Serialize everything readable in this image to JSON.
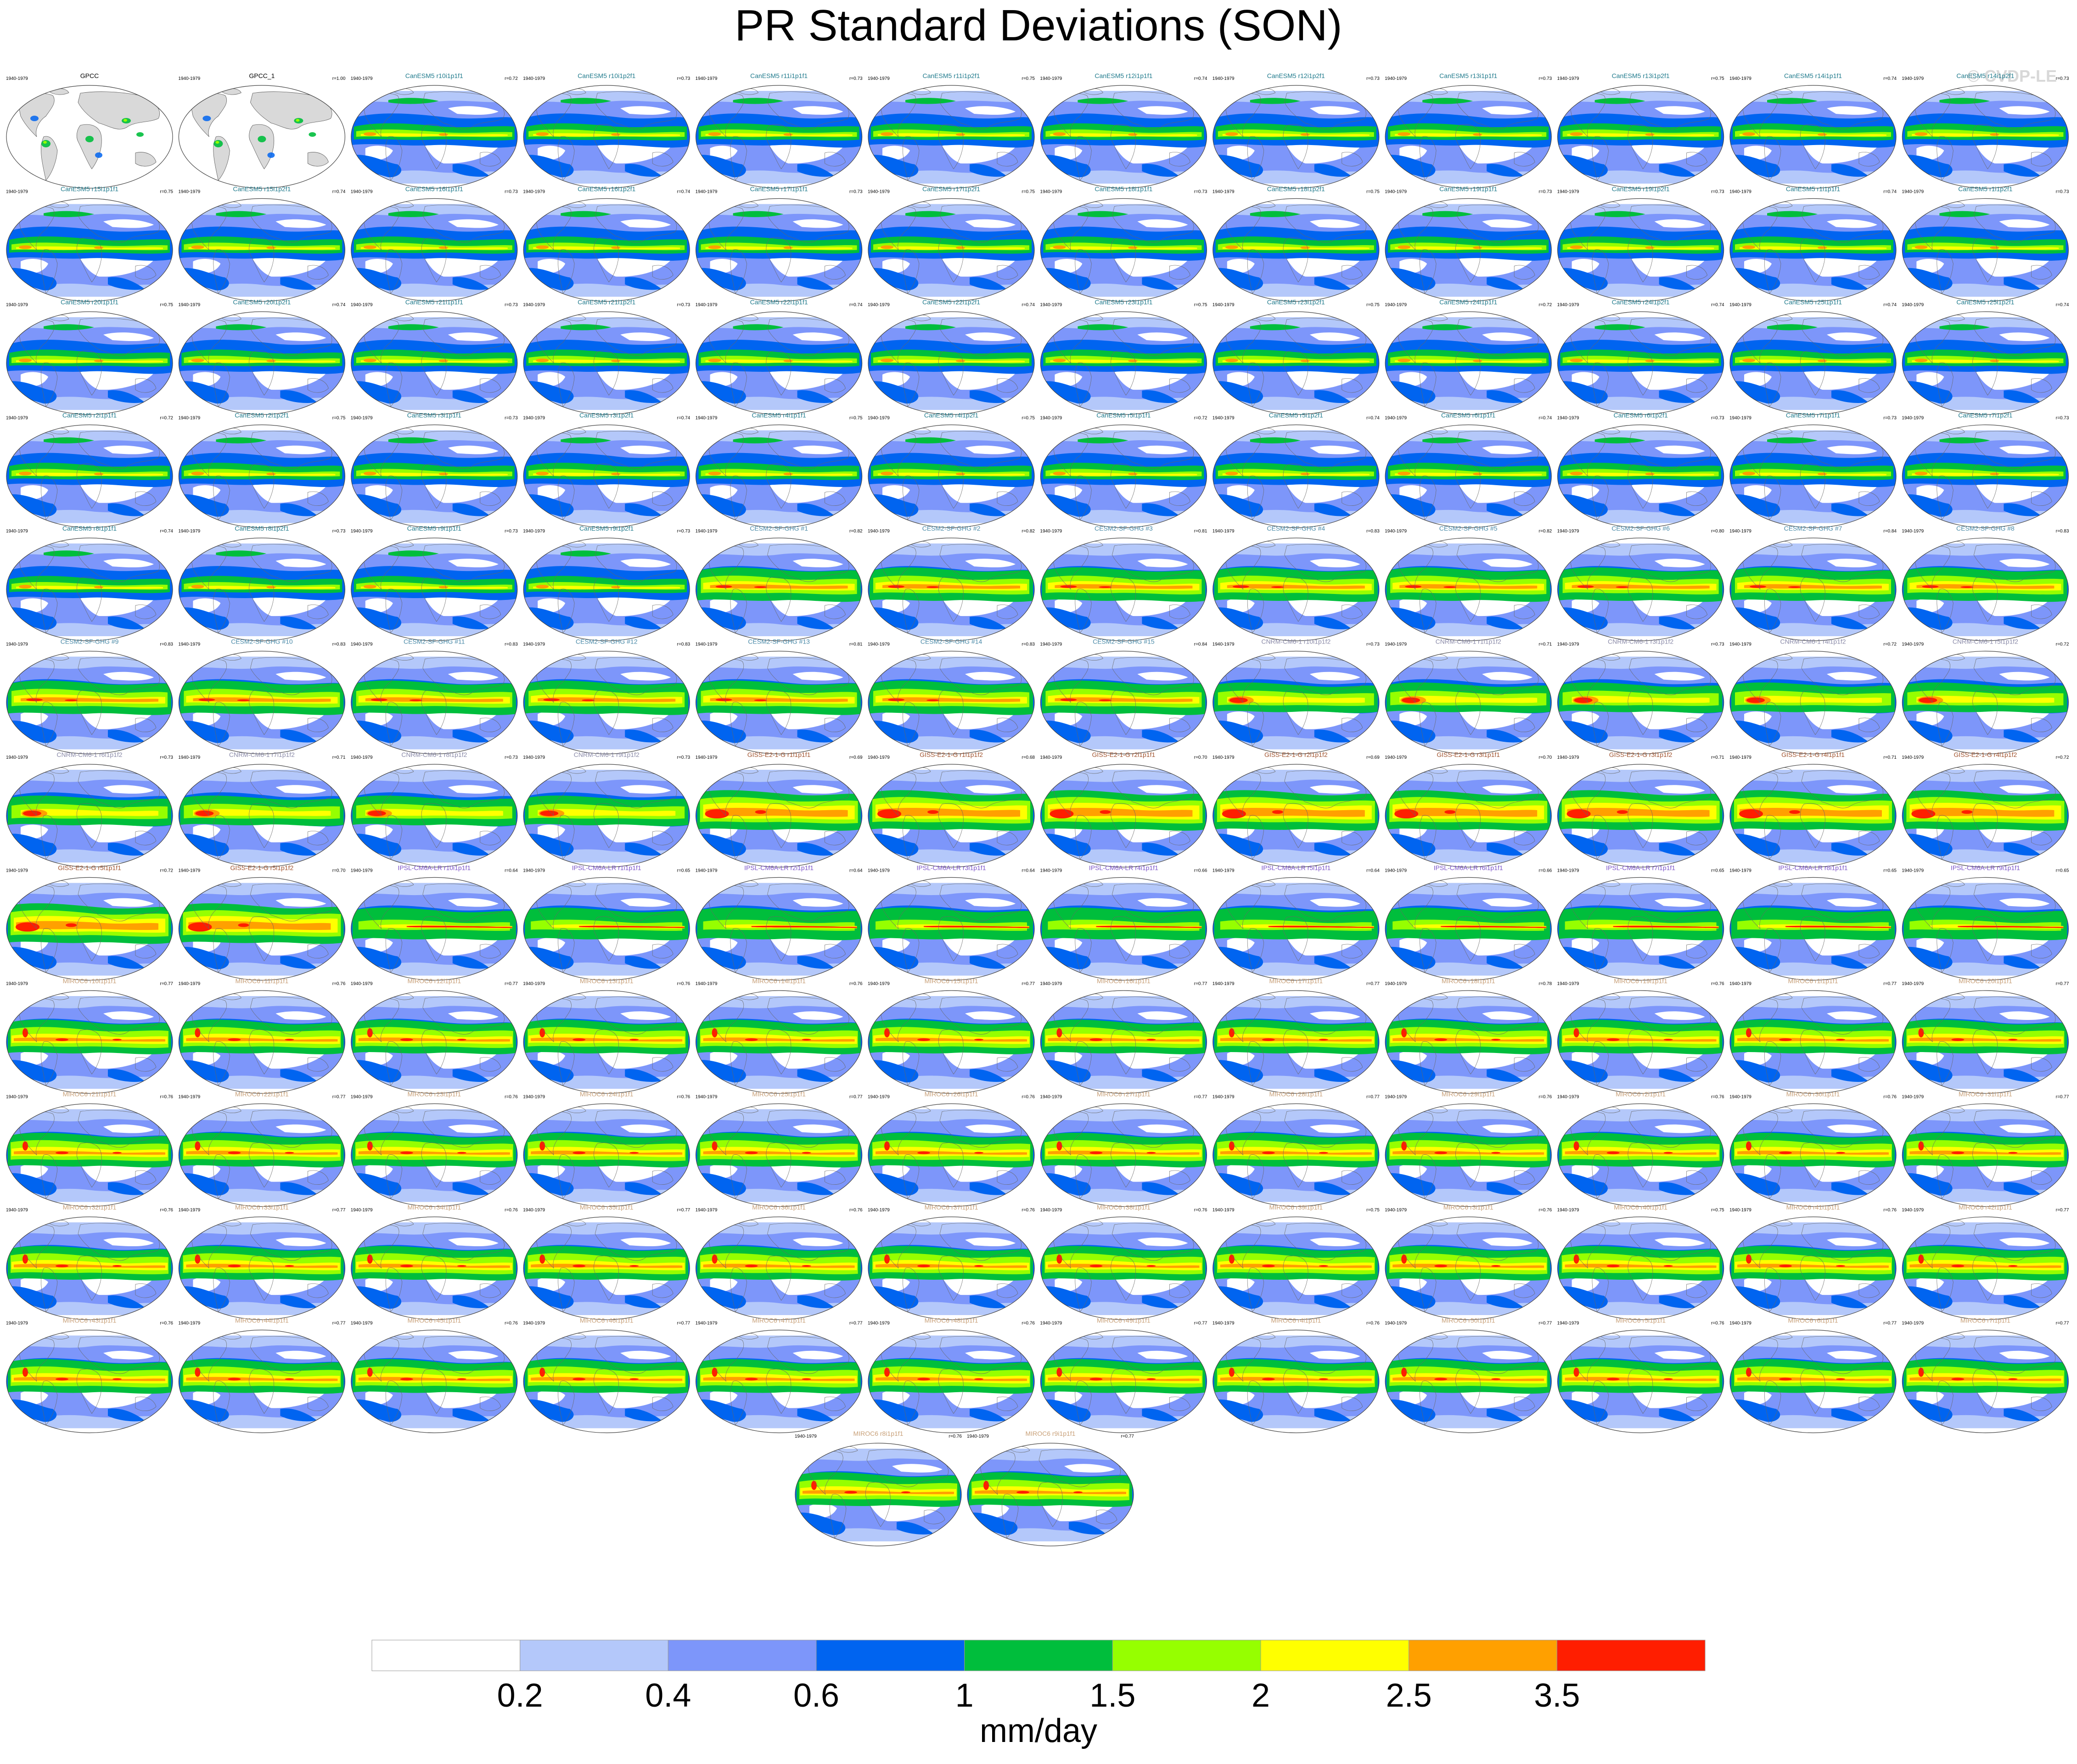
{
  "title": "PR Standard Deviations (SON)",
  "watermark": "© CVDP-LE",
  "colorbar": {
    "colors": [
      "#ffffff",
      "#b4c8fa",
      "#7d96fa",
      "#0064f0",
      "#00be3c",
      "#96ff00",
      "#ffff00",
      "#ffa000",
      "#ff1e00"
    ],
    "tick_labels": [
      "0.2",
      "0.4",
      "0.6",
      "1",
      "1.5",
      "2",
      "2.5",
      "3.5"
    ],
    "units": "mm/day"
  },
  "panel_period": "1940-1979",
  "chart_data": {
    "type": "heatmap",
    "panel_grid": {
      "rows": 13,
      "cols": 12
    },
    "panels": [
      {
        "name": "GPCC",
        "r": "",
        "color": "#000000",
        "kind": "obs"
      },
      {
        "name": "GPCC_1",
        "r": "r=1.00",
        "color": "#000000",
        "kind": "obs"
      },
      {
        "name": "CanESM5 r10i1p1f1",
        "r": "r=0.72",
        "color": "#1f7a8c",
        "kind": "can"
      },
      {
        "name": "CanESM5 r10i1p2f1",
        "r": "r=0.73",
        "color": "#1f7a8c",
        "kind": "can"
      },
      {
        "name": "CanESM5 r11i1p1f1",
        "r": "r=0.73",
        "color": "#1f7a8c",
        "kind": "can"
      },
      {
        "name": "CanESM5 r11i1p2f1",
        "r": "r=0.75",
        "color": "#1f7a8c",
        "kind": "can"
      },
      {
        "name": "CanESM5 r12i1p1f1",
        "r": "r=0.74",
        "color": "#1f7a8c",
        "kind": "can"
      },
      {
        "name": "CanESM5 r12i1p2f1",
        "r": "r=0.73",
        "color": "#1f7a8c",
        "kind": "can"
      },
      {
        "name": "CanESM5 r13i1p1f1",
        "r": "r=0.73",
        "color": "#1f7a8c",
        "kind": "can"
      },
      {
        "name": "CanESM5 r13i1p2f1",
        "r": "r=0.75",
        "color": "#1f7a8c",
        "kind": "can"
      },
      {
        "name": "CanESM5 r14i1p1f1",
        "r": "r=0.74",
        "color": "#1f7a8c",
        "kind": "can"
      },
      {
        "name": "CanESM5 r14i1p2f1",
        "r": "r=0.73",
        "color": "#1f7a8c",
        "kind": "can"
      },
      {
        "name": "CanESM5 r15i1p1f1",
        "r": "r=0.75",
        "color": "#1f7a8c",
        "kind": "can"
      },
      {
        "name": "CanESM5 r15i1p2f1",
        "r": "r=0.74",
        "color": "#1f7a8c",
        "kind": "can"
      },
      {
        "name": "CanESM5 r16i1p1f1",
        "r": "r=0.73",
        "color": "#1f7a8c",
        "kind": "can"
      },
      {
        "name": "CanESM5 r16i1p2f1",
        "r": "r=0.74",
        "color": "#1f7a8c",
        "kind": "can"
      },
      {
        "name": "CanESM5 r17i1p1f1",
        "r": "r=0.73",
        "color": "#1f7a8c",
        "kind": "can"
      },
      {
        "name": "CanESM5 r17i1p2f1",
        "r": "r=0.75",
        "color": "#1f7a8c",
        "kind": "can"
      },
      {
        "name": "CanESM5 r18i1p1f1",
        "r": "r=0.73",
        "color": "#1f7a8c",
        "kind": "can"
      },
      {
        "name": "CanESM5 r18i1p2f1",
        "r": "r=0.75",
        "color": "#1f7a8c",
        "kind": "can"
      },
      {
        "name": "CanESM5 r19i1p1f1",
        "r": "r=0.73",
        "color": "#1f7a8c",
        "kind": "can"
      },
      {
        "name": "CanESM5 r19i1p2f1",
        "r": "r=0.73",
        "color": "#1f7a8c",
        "kind": "can"
      },
      {
        "name": "CanESM5 r1i1p1f1",
        "r": "r=0.74",
        "color": "#1f7a8c",
        "kind": "can"
      },
      {
        "name": "CanESM5 r1i1p2f1",
        "r": "r=0.73",
        "color": "#1f7a8c",
        "kind": "can"
      },
      {
        "name": "CanESM5 r20i1p1f1",
        "r": "r=0.75",
        "color": "#1f7a8c",
        "kind": "can"
      },
      {
        "name": "CanESM5 r20i1p2f1",
        "r": "r=0.74",
        "color": "#1f7a8c",
        "kind": "can"
      },
      {
        "name": "CanESM5 r21i1p1f1",
        "r": "r=0.73",
        "color": "#1f7a8c",
        "kind": "can"
      },
      {
        "name": "CanESM5 r21i1p2f1",
        "r": "r=0.73",
        "color": "#1f7a8c",
        "kind": "can"
      },
      {
        "name": "CanESM5 r22i1p1f1",
        "r": "r=0.74",
        "color": "#1f7a8c",
        "kind": "can"
      },
      {
        "name": "CanESM5 r22i1p2f1",
        "r": "r=0.74",
        "color": "#1f7a8c",
        "kind": "can"
      },
      {
        "name": "CanESM5 r23i1p1f1",
        "r": "r=0.75",
        "color": "#1f7a8c",
        "kind": "can"
      },
      {
        "name": "CanESM5 r23i1p2f1",
        "r": "r=0.75",
        "color": "#1f7a8c",
        "kind": "can"
      },
      {
        "name": "CanESM5 r24i1p1f1",
        "r": "r=0.72",
        "color": "#1f7a8c",
        "kind": "can"
      },
      {
        "name": "CanESM5 r24i1p2f1",
        "r": "r=0.74",
        "color": "#1f7a8c",
        "kind": "can"
      },
      {
        "name": "CanESM5 r25i1p1f1",
        "r": "r=0.74",
        "color": "#1f7a8c",
        "kind": "can"
      },
      {
        "name": "CanESM5 r25i1p2f1",
        "r": "r=0.74",
        "color": "#1f7a8c",
        "kind": "can"
      },
      {
        "name": "CanESM5 r2i1p1f1",
        "r": "r=0.72",
        "color": "#1f7a8c",
        "kind": "can"
      },
      {
        "name": "CanESM5 r2i1p2f1",
        "r": "r=0.75",
        "color": "#1f7a8c",
        "kind": "can"
      },
      {
        "name": "CanESM5 r3i1p1f1",
        "r": "r=0.73",
        "color": "#1f7a8c",
        "kind": "can"
      },
      {
        "name": "CanESM5 r3i1p2f1",
        "r": "r=0.74",
        "color": "#1f7a8c",
        "kind": "can"
      },
      {
        "name": "CanESM5 r4i1p1f1",
        "r": "r=0.75",
        "color": "#1f7a8c",
        "kind": "can"
      },
      {
        "name": "CanESM5 r4i1p2f1",
        "r": "r=0.75",
        "color": "#1f7a8c",
        "kind": "can"
      },
      {
        "name": "CanESM5 r5i1p1f1",
        "r": "r=0.72",
        "color": "#1f7a8c",
        "kind": "can"
      },
      {
        "name": "CanESM5 r5i1p2f1",
        "r": "r=0.74",
        "color": "#1f7a8c",
        "kind": "can"
      },
      {
        "name": "CanESM5 r6i1p1f1",
        "r": "r=0.74",
        "color": "#1f7a8c",
        "kind": "can"
      },
      {
        "name": "CanESM5 r6i1p2f1",
        "r": "r=0.73",
        "color": "#1f7a8c",
        "kind": "can"
      },
      {
        "name": "CanESM5 r7i1p1f1",
        "r": "r=0.73",
        "color": "#1f7a8c",
        "kind": "can"
      },
      {
        "name": "CanESM5 r7i1p2f1",
        "r": "r=0.73",
        "color": "#1f7a8c",
        "kind": "can"
      },
      {
        "name": "CanESM5 r8i1p1f1",
        "r": "r=0.74",
        "color": "#1f7a8c",
        "kind": "can"
      },
      {
        "name": "CanESM5 r8i1p2f1",
        "r": "r=0.73",
        "color": "#1f7a8c",
        "kind": "can"
      },
      {
        "name": "CanESM5 r9i1p1f1",
        "r": "r=0.73",
        "color": "#1f7a8c",
        "kind": "can"
      },
      {
        "name": "CanESM5 r9i1p2f1",
        "r": "r=0.73",
        "color": "#1f7a8c",
        "kind": "can"
      },
      {
        "name": "CESM2-SF-GHG #1",
        "r": "r=0.82",
        "color": "#4a8aa8",
        "kind": "cesm"
      },
      {
        "name": "CESM2-SF-GHG #2",
        "r": "r=0.82",
        "color": "#4a8aa8",
        "kind": "cesm"
      },
      {
        "name": "CESM2-SF-GHG #3",
        "r": "r=0.81",
        "color": "#4a8aa8",
        "kind": "cesm"
      },
      {
        "name": "CESM2-SF-GHG #4",
        "r": "r=0.83",
        "color": "#4a8aa8",
        "kind": "cesm"
      },
      {
        "name": "CESM2-SF-GHG #5",
        "r": "r=0.82",
        "color": "#4a8aa8",
        "kind": "cesm"
      },
      {
        "name": "CESM2-SF-GHG #6",
        "r": "r=0.80",
        "color": "#4a8aa8",
        "kind": "cesm"
      },
      {
        "name": "CESM2-SF-GHG #7",
        "r": "r=0.84",
        "color": "#4a8aa8",
        "kind": "cesm"
      },
      {
        "name": "CESM2-SF-GHG #8",
        "r": "r=0.83",
        "color": "#4a8aa8",
        "kind": "cesm"
      },
      {
        "name": "CESM2-SF-GHG #9",
        "r": "r=0.83",
        "color": "#4a8aa8",
        "kind": "cesm"
      },
      {
        "name": "CESM2-SF-GHG #10",
        "r": "r=0.83",
        "color": "#4a8aa8",
        "kind": "cesm"
      },
      {
        "name": "CESM2-SF-GHG #11",
        "r": "r=0.83",
        "color": "#4a8aa8",
        "kind": "cesm"
      },
      {
        "name": "CESM2-SF-GHG #12",
        "r": "r=0.83",
        "color": "#4a8aa8",
        "kind": "cesm"
      },
      {
        "name": "CESM2-SF-GHG #13",
        "r": "r=0.81",
        "color": "#4a8aa8",
        "kind": "cesm"
      },
      {
        "name": "CESM2-SF-GHG #14",
        "r": "r=0.83",
        "color": "#4a8aa8",
        "kind": "cesm"
      },
      {
        "name": "CESM2-SF-GHG #15",
        "r": "r=0.84",
        "color": "#4a8aa8",
        "kind": "cesm"
      },
      {
        "name": "CNRM-CM6-1 r10i1p1f2",
        "r": "r=0.73",
        "color": "#8a8aa8",
        "kind": "cnrm"
      },
      {
        "name": "CNRM-CM6-1 r1i1p1f2",
        "r": "r=0.71",
        "color": "#8a8aa8",
        "kind": "cnrm"
      },
      {
        "name": "CNRM-CM6-1 r3i1p1f2",
        "r": "r=0.73",
        "color": "#8a8aa8",
        "kind": "cnrm"
      },
      {
        "name": "CNRM-CM6-1 r4i1p1f2",
        "r": "r=0.72",
        "color": "#8a8aa8",
        "kind": "cnrm"
      },
      {
        "name": "CNRM-CM6-1 r5i1p1f2",
        "r": "r=0.72",
        "color": "#8a8aa8",
        "kind": "cnrm"
      },
      {
        "name": "CNRM-CM6-1 r6i1p1f2",
        "r": "r=0.73",
        "color": "#8a8aa8",
        "kind": "cnrm"
      },
      {
        "name": "CNRM-CM6-1 r7i1p1f2",
        "r": "r=0.71",
        "color": "#8a8aa8",
        "kind": "cnrm"
      },
      {
        "name": "CNRM-CM6-1 r8i1p1f2",
        "r": "r=0.73",
        "color": "#8a8aa8",
        "kind": "cnrm"
      },
      {
        "name": "CNRM-CM6-1 r9i1p1f2",
        "r": "r=0.73",
        "color": "#8a8aa8",
        "kind": "cnrm"
      },
      {
        "name": "GISS-E2-1-G r1i1p1f1",
        "r": "r=0.69",
        "color": "#a0522d",
        "kind": "giss"
      },
      {
        "name": "GISS-E2-1-G r1i1p1f2",
        "r": "r=0.68",
        "color": "#a0522d",
        "kind": "giss"
      },
      {
        "name": "GISS-E2-1-G r2i1p1f1",
        "r": "r=0.70",
        "color": "#a0522d",
        "kind": "giss"
      },
      {
        "name": "GISS-E2-1-G r2i1p1f2",
        "r": "r=0.69",
        "color": "#a0522d",
        "kind": "giss"
      },
      {
        "name": "GISS-E2-1-G r3i1p1f1",
        "r": "r=0.70",
        "color": "#a0522d",
        "kind": "giss"
      },
      {
        "name": "GISS-E2-1-G r3i1p1f2",
        "r": "r=0.71",
        "color": "#a0522d",
        "kind": "giss"
      },
      {
        "name": "GISS-E2-1-G r4i1p1f1",
        "r": "r=0.71",
        "color": "#a0522d",
        "kind": "giss"
      },
      {
        "name": "GISS-E2-1-G r4i1p1f2",
        "r": "r=0.72",
        "color": "#a0522d",
        "kind": "giss"
      },
      {
        "name": "GISS-E2-1-G r5i1p1f1",
        "r": "r=0.72",
        "color": "#a0522d",
        "kind": "giss"
      },
      {
        "name": "GISS-E2-1-G r5i1p1f2",
        "r": "r=0.70",
        "color": "#a0522d",
        "kind": "giss"
      },
      {
        "name": "IPSL-CM6A-LR r10i1p1f1",
        "r": "r=0.64",
        "color": "#7b52c8",
        "kind": "ipsl"
      },
      {
        "name": "IPSL-CM6A-LR r1i1p1f1",
        "r": "r=0.65",
        "color": "#7b52c8",
        "kind": "ipsl"
      },
      {
        "name": "IPSL-CM6A-LR r2i1p1f1",
        "r": "r=0.64",
        "color": "#7b52c8",
        "kind": "ipsl"
      },
      {
        "name": "IPSL-CM6A-LR r3i1p1f1",
        "r": "r=0.64",
        "color": "#7b52c8",
        "kind": "ipsl"
      },
      {
        "name": "IPSL-CM6A-LR r4i1p1f1",
        "r": "r=0.66",
        "color": "#7b52c8",
        "kind": "ipsl"
      },
      {
        "name": "IPSL-CM6A-LR r5i1p1f1",
        "r": "r=0.64",
        "color": "#7b52c8",
        "kind": "ipsl"
      },
      {
        "name": "IPSL-CM6A-LR r6i1p1f1",
        "r": "r=0.66",
        "color": "#7b52c8",
        "kind": "ipsl"
      },
      {
        "name": "IPSL-CM6A-LR r7i1p1f1",
        "r": "r=0.65",
        "color": "#7b52c8",
        "kind": "ipsl"
      },
      {
        "name": "IPSL-CM6A-LR r8i1p1f1",
        "r": "r=0.65",
        "color": "#7b52c8",
        "kind": "ipsl"
      },
      {
        "name": "IPSL-CM6A-LR r9i1p1f1",
        "r": "r=0.65",
        "color": "#7b52c8",
        "kind": "ipsl"
      },
      {
        "name": "MIROC6 r10i1p1f1",
        "r": "r=0.77",
        "color": "#c8a078",
        "kind": "miroc"
      },
      {
        "name": "MIROC6 r11i1p1f1",
        "r": "r=0.76",
        "color": "#c8a078",
        "kind": "miroc"
      },
      {
        "name": "MIROC6 r12i1p1f1",
        "r": "r=0.77",
        "color": "#c8a078",
        "kind": "miroc"
      },
      {
        "name": "MIROC6 r13i1p1f1",
        "r": "r=0.76",
        "color": "#c8a078",
        "kind": "miroc"
      },
      {
        "name": "MIROC6 r14i1p1f1",
        "r": "r=0.76",
        "color": "#c8a078",
        "kind": "miroc"
      },
      {
        "name": "MIROC6 r15i1p1f1",
        "r": "r=0.77",
        "color": "#c8a078",
        "kind": "miroc"
      },
      {
        "name": "MIROC6 r16i1p1f1",
        "r": "r=0.77",
        "color": "#c8a078",
        "kind": "miroc"
      },
      {
        "name": "MIROC6 r17i1p1f1",
        "r": "r=0.77",
        "color": "#c8a078",
        "kind": "miroc"
      },
      {
        "name": "MIROC6 r18i1p1f1",
        "r": "r=0.78",
        "color": "#c8a078",
        "kind": "miroc"
      },
      {
        "name": "MIROC6 r19i1p1f1",
        "r": "r=0.76",
        "color": "#c8a078",
        "kind": "miroc"
      },
      {
        "name": "MIROC6 r1i1p1f1",
        "r": "r=0.77",
        "color": "#c8a078",
        "kind": "miroc"
      },
      {
        "name": "MIROC6 r20i1p1f1",
        "r": "r=0.77",
        "color": "#c8a078",
        "kind": "miroc"
      },
      {
        "name": "MIROC6 r21i1p1f1",
        "r": "r=0.76",
        "color": "#c8a078",
        "kind": "miroc"
      },
      {
        "name": "MIROC6 r22i1p1f1",
        "r": "r=0.77",
        "color": "#c8a078",
        "kind": "miroc"
      },
      {
        "name": "MIROC6 r23i1p1f1",
        "r": "r=0.76",
        "color": "#c8a078",
        "kind": "miroc"
      },
      {
        "name": "MIROC6 r24i1p1f1",
        "r": "r=0.76",
        "color": "#c8a078",
        "kind": "miroc"
      },
      {
        "name": "MIROC6 r25i1p1f1",
        "r": "r=0.77",
        "color": "#c8a078",
        "kind": "miroc"
      },
      {
        "name": "MIROC6 r26i1p1f1",
        "r": "r=0.76",
        "color": "#c8a078",
        "kind": "miroc"
      },
      {
        "name": "MIROC6 r27i1p1f1",
        "r": "r=0.77",
        "color": "#c8a078",
        "kind": "miroc"
      },
      {
        "name": "MIROC6 r28i1p1f1",
        "r": "r=0.77",
        "color": "#c8a078",
        "kind": "miroc"
      },
      {
        "name": "MIROC6 r29i1p1f1",
        "r": "r=0.76",
        "color": "#c8a078",
        "kind": "miroc"
      },
      {
        "name": "MIROC6 r2i1p1f1",
        "r": "r=0.76",
        "color": "#c8a078",
        "kind": "miroc"
      },
      {
        "name": "MIROC6 r30i1p1f1",
        "r": "r=0.76",
        "color": "#c8a078",
        "kind": "miroc"
      },
      {
        "name": "MIROC6 r31i1p1f1",
        "r": "r=0.77",
        "color": "#c8a078",
        "kind": "miroc"
      },
      {
        "name": "MIROC6 r32i1p1f1",
        "r": "r=0.76",
        "color": "#c8a078",
        "kind": "miroc"
      },
      {
        "name": "MIROC6 r33i1p1f1",
        "r": "r=0.77",
        "color": "#c8a078",
        "kind": "miroc"
      },
      {
        "name": "MIROC6 r34i1p1f1",
        "r": "r=0.76",
        "color": "#c8a078",
        "kind": "miroc"
      },
      {
        "name": "MIROC6 r35i1p1f1",
        "r": "r=0.77",
        "color": "#c8a078",
        "kind": "miroc"
      },
      {
        "name": "MIROC6 r36i1p1f1",
        "r": "r=0.76",
        "color": "#c8a078",
        "kind": "miroc"
      },
      {
        "name": "MIROC6 r37i1p1f1",
        "r": "r=0.76",
        "color": "#c8a078",
        "kind": "miroc"
      },
      {
        "name": "MIROC6 r38i1p1f1",
        "r": "r=0.76",
        "color": "#c8a078",
        "kind": "miroc"
      },
      {
        "name": "MIROC6 r39i1p1f1",
        "r": "r=0.75",
        "color": "#c8a078",
        "kind": "miroc"
      },
      {
        "name": "MIROC6 r3i1p1f1",
        "r": "r=0.76",
        "color": "#c8a078",
        "kind": "miroc"
      },
      {
        "name": "MIROC6 r40i1p1f1",
        "r": "r=0.75",
        "color": "#c8a078",
        "kind": "miroc"
      },
      {
        "name": "MIROC6 r41i1p1f1",
        "r": "r=0.76",
        "color": "#c8a078",
        "kind": "miroc"
      },
      {
        "name": "MIROC6 r42i1p1f1",
        "r": "r=0.77",
        "color": "#c8a078",
        "kind": "miroc"
      },
      {
        "name": "MIROC6 r43i1p1f1",
        "r": "r=0.76",
        "color": "#c8a078",
        "kind": "miroc"
      },
      {
        "name": "MIROC6 r44i1p1f1",
        "r": "r=0.77",
        "color": "#c8a078",
        "kind": "miroc"
      },
      {
        "name": "MIROC6 r45i1p1f1",
        "r": "r=0.76",
        "color": "#c8a078",
        "kind": "miroc"
      },
      {
        "name": "MIROC6 r46i1p1f1",
        "r": "r=0.77",
        "color": "#c8a078",
        "kind": "miroc"
      },
      {
        "name": "MIROC6 r47i1p1f1",
        "r": "r=0.77",
        "color": "#c8a078",
        "kind": "miroc"
      },
      {
        "name": "MIROC6 r48i1p1f1",
        "r": "r=0.76",
        "color": "#c8a078",
        "kind": "miroc"
      },
      {
        "name": "MIROC6 r49i1p1f1",
        "r": "r=0.77",
        "color": "#c8a078",
        "kind": "miroc"
      },
      {
        "name": "MIROC6 r4i1p1f1",
        "r": "r=0.76",
        "color": "#c8a078",
        "kind": "miroc"
      },
      {
        "name": "MIROC6 r50i1p1f1",
        "r": "r=0.77",
        "color": "#c8a078",
        "kind": "miroc"
      },
      {
        "name": "MIROC6 r5i1p1f1",
        "r": "r=0.76",
        "color": "#c8a078",
        "kind": "miroc"
      },
      {
        "name": "MIROC6 r6i1p1f1",
        "r": "r=0.77",
        "color": "#c8a078",
        "kind": "miroc"
      },
      {
        "name": "MIROC6 r7i1p1f1",
        "r": "r=0.77",
        "color": "#c8a078",
        "kind": "miroc"
      },
      {
        "name": "MIROC6 r8i1p1f1",
        "r": "r=0.76",
        "color": "#c8a078",
        "kind": "miroc"
      },
      {
        "name": "MIROC6 r9i1p1f1",
        "r": "r=0.77",
        "color": "#c8a078",
        "kind": "miroc"
      }
    ]
  }
}
